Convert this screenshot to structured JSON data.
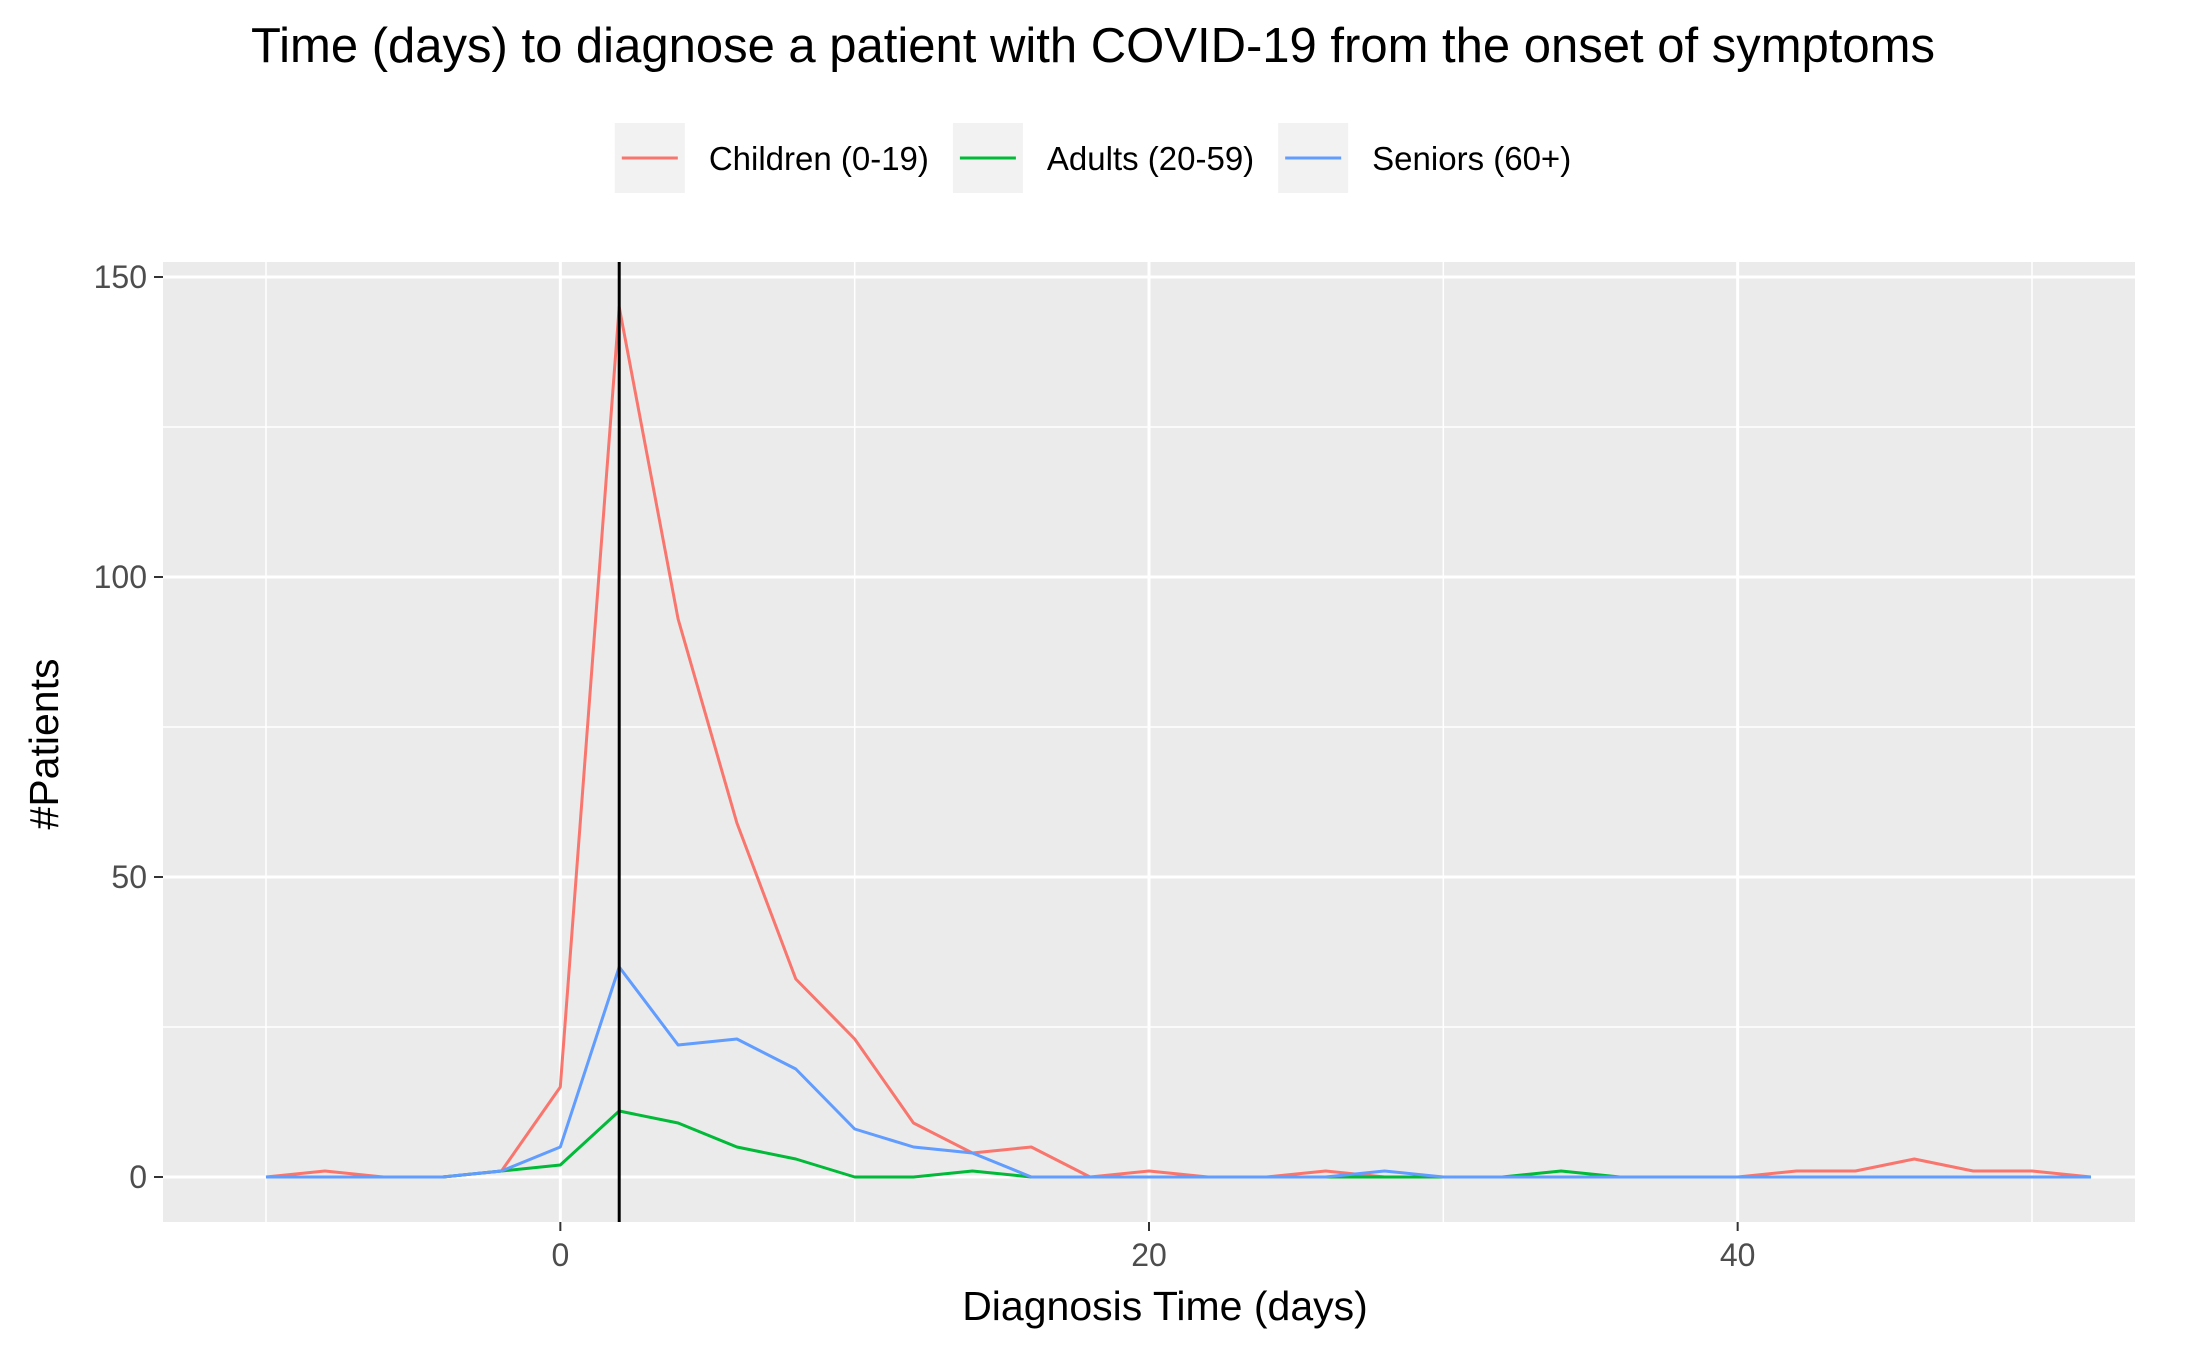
{
  "chart_data": {
    "type": "line",
    "title": "Time (days) to diagnose a patient with COVID-19 from the onset of symptoms",
    "xlabel": "Diagnosis Time (days)",
    "ylabel": "#Patients",
    "xlim": [
      -13.5,
      53.5
    ],
    "ylim": [
      -7.5,
      152.5
    ],
    "x_ticks": [
      0,
      20,
      40
    ],
    "x_ticks_minor": [
      -10,
      10,
      30,
      50
    ],
    "y_ticks": [
      0,
      50,
      100,
      150
    ],
    "y_ticks_minor": [
      25,
      75,
      125
    ],
    "grid": true,
    "legend_position": "top",
    "vline_x": 2,
    "colors": {
      "panel": "#ebebeb",
      "grid": "#ffffff",
      "vline": "#000000",
      "tick": "#333333"
    },
    "series": [
      {
        "name": "Children (0-19)",
        "color": "#f8766d",
        "points": [
          [
            -10,
            0
          ],
          [
            -8,
            1
          ],
          [
            -6,
            0
          ],
          [
            -4,
            0
          ],
          [
            -2,
            1
          ],
          [
            0,
            15
          ],
          [
            2,
            145
          ],
          [
            4,
            93
          ],
          [
            6,
            59
          ],
          [
            8,
            33
          ],
          [
            10,
            23
          ],
          [
            12,
            9
          ],
          [
            14,
            4
          ],
          [
            16,
            5
          ],
          [
            18,
            0
          ],
          [
            20,
            1
          ],
          [
            22,
            0
          ],
          [
            24,
            0
          ],
          [
            26,
            1
          ],
          [
            28,
            0
          ],
          [
            30,
            0
          ],
          [
            32,
            0
          ],
          [
            34,
            0
          ],
          [
            36,
            0
          ],
          [
            38,
            0
          ],
          [
            40,
            0
          ],
          [
            42,
            1
          ],
          [
            44,
            1
          ],
          [
            46,
            3
          ],
          [
            48,
            1
          ],
          [
            50,
            1
          ],
          [
            52,
            0
          ]
        ]
      },
      {
        "name": "Adults (20-59)",
        "color": "#00ba38",
        "points": [
          [
            -10,
            0
          ],
          [
            -8,
            0
          ],
          [
            -6,
            0
          ],
          [
            -4,
            0
          ],
          [
            -2,
            1
          ],
          [
            0,
            2
          ],
          [
            2,
            11
          ],
          [
            4,
            9
          ],
          [
            6,
            5
          ],
          [
            8,
            3
          ],
          [
            10,
            0
          ],
          [
            12,
            0
          ],
          [
            14,
            1
          ],
          [
            16,
            0
          ],
          [
            18,
            0
          ],
          [
            20,
            0
          ],
          [
            22,
            0
          ],
          [
            24,
            0
          ],
          [
            26,
            0
          ],
          [
            28,
            0
          ],
          [
            30,
            0
          ],
          [
            32,
            0
          ],
          [
            34,
            1
          ],
          [
            36,
            0
          ],
          [
            38,
            0
          ],
          [
            40,
            0
          ],
          [
            42,
            0
          ],
          [
            44,
            0
          ],
          [
            46,
            0
          ],
          [
            48,
            0
          ],
          [
            50,
            0
          ],
          [
            52,
            0
          ]
        ]
      },
      {
        "name": "Seniors (60+)",
        "color": "#619cff",
        "points": [
          [
            -10,
            0
          ],
          [
            -8,
            0
          ],
          [
            -6,
            0
          ],
          [
            -4,
            0
          ],
          [
            -2,
            1
          ],
          [
            0,
            5
          ],
          [
            2,
            35
          ],
          [
            4,
            22
          ],
          [
            6,
            23
          ],
          [
            8,
            18
          ],
          [
            10,
            8
          ],
          [
            12,
            5
          ],
          [
            14,
            4
          ],
          [
            16,
            0
          ],
          [
            18,
            0
          ],
          [
            20,
            0
          ],
          [
            22,
            0
          ],
          [
            24,
            0
          ],
          [
            26,
            0
          ],
          [
            28,
            1
          ],
          [
            30,
            0
          ],
          [
            32,
            0
          ],
          [
            34,
            0
          ],
          [
            36,
            0
          ],
          [
            38,
            0
          ],
          [
            40,
            0
          ],
          [
            42,
            0
          ],
          [
            44,
            0
          ],
          [
            46,
            0
          ],
          [
            48,
            0
          ],
          [
            50,
            0
          ],
          [
            52,
            0
          ]
        ]
      }
    ]
  }
}
